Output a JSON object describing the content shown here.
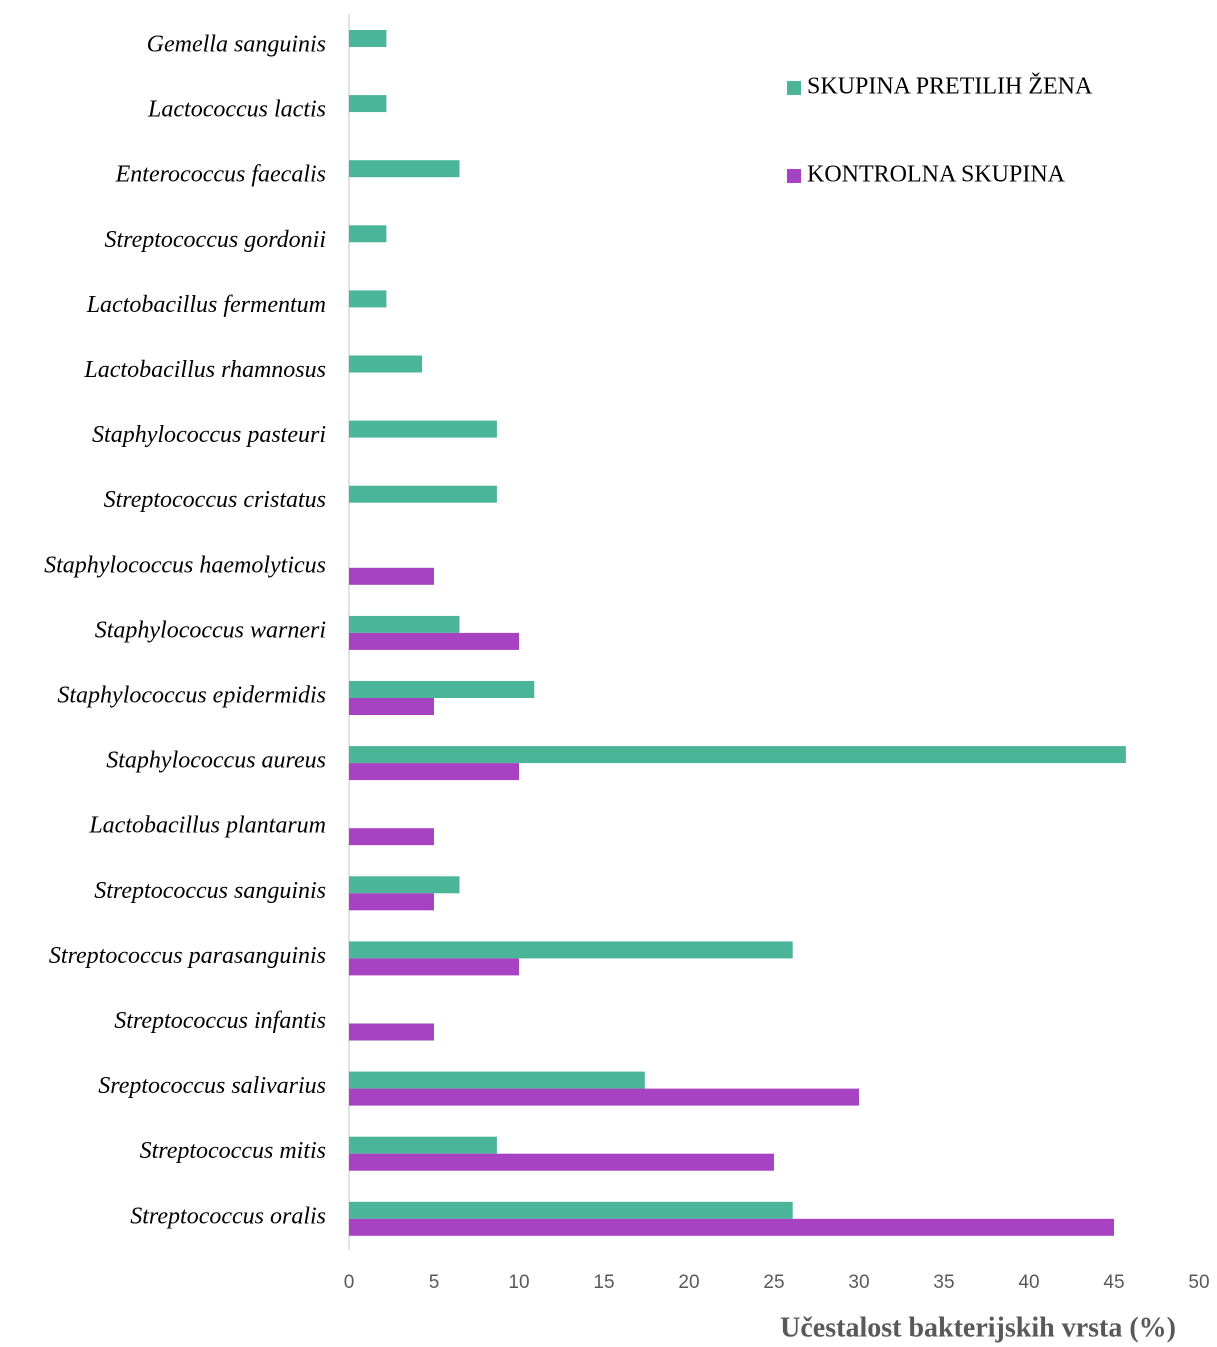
{
  "chart_data": {
    "type": "hbar",
    "categories": [
      "Gemella sanguinis",
      "Lactococcus lactis",
      "Enterococcus faecalis",
      "Streptococcus gordonii",
      "Lactobacillus fermentum",
      "Lactobacillus rhamnosus",
      "Staphylococcus pasteuri",
      "Streptococcus cristatus",
      "Staphylococcus haemolyticus",
      "Staphylococcus warneri",
      "Staphylococcus epidermidis",
      "Staphylococcus aureus",
      "Lactobacillus plantarum",
      "Streptococcus sanguinis",
      "Streptococcus parasanguinis",
      "Streptococcus infantis",
      "Sreptococcus salivarius",
      "Streptococcus mitis",
      "Streptococcus oralis"
    ],
    "series": [
      {
        "name": "SKUPINA PRETILIH ŽENA",
        "color": "#4bb59a",
        "values": [
          2.2,
          2.2,
          6.5,
          2.2,
          2.2,
          4.3,
          8.7,
          8.7,
          null,
          6.5,
          10.9,
          45.7,
          null,
          6.5,
          26.1,
          null,
          17.4,
          8.7,
          26.1
        ]
      },
      {
        "name": "KONTROLNA SKUPINA",
        "color": "#a742c2",
        "values": [
          null,
          null,
          null,
          null,
          null,
          null,
          null,
          null,
          5,
          10,
          5,
          10,
          5,
          5,
          10,
          5,
          30,
          25,
          45
        ]
      }
    ],
    "xlabel": "Učestalost bakterijskih vrsta (%)",
    "xlim": [
      0,
      50
    ],
    "xticks": [
      0,
      5,
      10,
      15,
      20,
      25,
      30,
      35,
      40,
      45,
      50
    ],
    "grid": false,
    "legend": "top-right"
  }
}
